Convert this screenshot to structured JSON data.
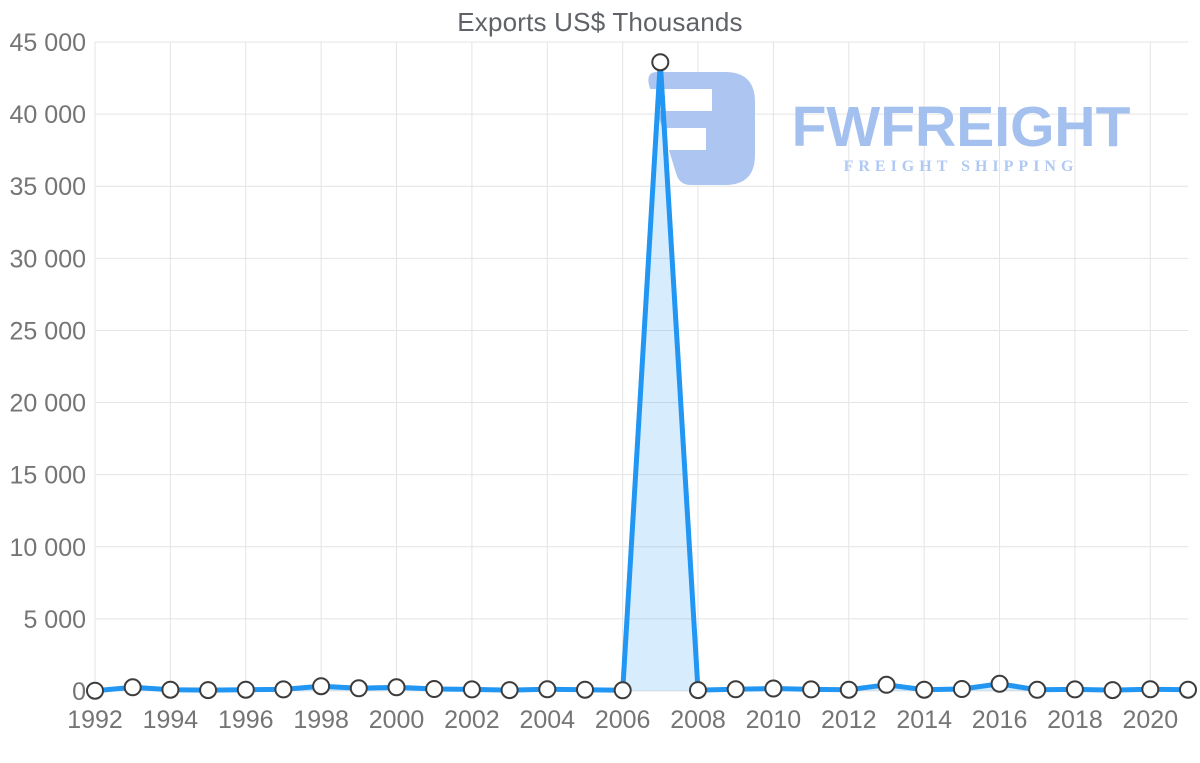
{
  "title": "Exports US$ Thousands",
  "watermark": {
    "brand": "FWFREIGHT",
    "tagline": "FREIGHT SHIPPING",
    "color": "#a3c0ee"
  },
  "chart_data": {
    "type": "line",
    "title": "Exports US$ Thousands",
    "xlabel": "",
    "ylabel": "",
    "x": [
      1992,
      1993,
      1994,
      1995,
      1996,
      1997,
      1998,
      1999,
      2000,
      2001,
      2002,
      2003,
      2004,
      2005,
      2006,
      2007,
      2008,
      2009,
      2010,
      2011,
      2012,
      2013,
      2014,
      2015,
      2016,
      2017,
      2018,
      2019,
      2020,
      2021
    ],
    "values": [
      20,
      260,
      90,
      60,
      90,
      110,
      330,
      190,
      260,
      140,
      110,
      60,
      120,
      90,
      50,
      43600,
      60,
      120,
      170,
      110,
      90,
      430,
      90,
      140,
      500,
      80,
      110,
      60,
      120,
      90
    ],
    "x_ticks": [
      1992,
      1994,
      1996,
      1998,
      2000,
      2002,
      2004,
      2006,
      2008,
      2010,
      2012,
      2014,
      2016,
      2018,
      2020
    ],
    "x_tick_labels": [
      "1992",
      "1994",
      "1996",
      "1998",
      "2000",
      "2002",
      "2004",
      "2006",
      "2008",
      "2010",
      "2012",
      "2014",
      "2016",
      "2018",
      "2020"
    ],
    "ylim": [
      0,
      45000
    ],
    "y_tick_step": 5000,
    "y_tick_labels": [
      "0",
      "5 000",
      "10 000",
      "15 000",
      "20 000",
      "25 000",
      "30 000",
      "35 000",
      "40 000",
      "45 000"
    ],
    "grid": true,
    "legend": "none",
    "peak_point": {
      "x": 2007,
      "value": 43600
    },
    "colors": {
      "line": "#2196f3",
      "fill": "rgba(33,150,243,0.18)",
      "marker_fill": "#ffffff",
      "marker_stroke": "#3c3c3c",
      "grid": "#e4e4e4",
      "tick": "#757575",
      "title": "#5f6368"
    }
  }
}
